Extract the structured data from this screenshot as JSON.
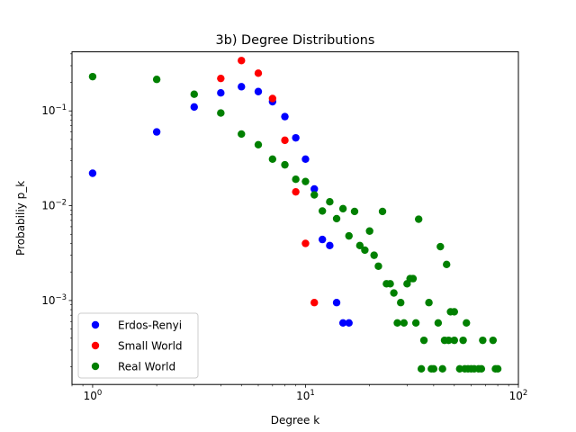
{
  "chart_data": {
    "type": "scatter",
    "title": "3b) Degree Distributions",
    "xlabel": "Degree k",
    "ylabel": "Probabiliy p_k",
    "xscale": "log",
    "yscale": "log",
    "xlim": [
      0.8,
      100
    ],
    "ylim": [
      0.00013,
      0.42
    ],
    "grid": false,
    "legend_position": "lower-left",
    "x_ticks": [
      {
        "value": 1,
        "base": "10",
        "exp": "0"
      },
      {
        "value": 10,
        "base": "10",
        "exp": "1"
      },
      {
        "value": 100,
        "base": "10",
        "exp": "2"
      }
    ],
    "y_ticks": [
      {
        "value": 0.001,
        "base": "10",
        "exp": "−3"
      },
      {
        "value": 0.01,
        "base": "10",
        "exp": "−2"
      },
      {
        "value": 0.1,
        "base": "10",
        "exp": "−1"
      }
    ],
    "series": [
      {
        "name": "Erdos-Renyi",
        "color": "#0000ff",
        "points": [
          [
            1,
            0.022
          ],
          [
            2,
            0.06
          ],
          [
            3,
            0.11
          ],
          [
            4,
            0.155
          ],
          [
            5,
            0.18
          ],
          [
            6,
            0.16
          ],
          [
            7,
            0.125
          ],
          [
            8,
            0.087
          ],
          [
            9,
            0.052
          ],
          [
            10,
            0.031
          ],
          [
            11,
            0.015
          ],
          [
            12,
            0.0044
          ],
          [
            13,
            0.0038
          ],
          [
            14,
            0.00095
          ],
          [
            15,
            0.00058
          ],
          [
            16,
            0.00058
          ]
        ]
      },
      {
        "name": "Small World",
        "color": "#ff0000",
        "points": [
          [
            4,
            0.22
          ],
          [
            5,
            0.34
          ],
          [
            6,
            0.25
          ],
          [
            7,
            0.135
          ],
          [
            8,
            0.049
          ],
          [
            9,
            0.014
          ],
          [
            10,
            0.004
          ],
          [
            11,
            0.00095
          ]
        ]
      },
      {
        "name": "Real World",
        "color": "#008000",
        "points": [
          [
            1,
            0.23
          ],
          [
            2,
            0.215
          ],
          [
            3,
            0.15
          ],
          [
            4,
            0.095
          ],
          [
            5,
            0.057
          ],
          [
            6,
            0.044
          ],
          [
            7,
            0.031
          ],
          [
            8,
            0.027
          ],
          [
            9,
            0.019
          ],
          [
            10,
            0.018
          ],
          [
            11,
            0.013
          ],
          [
            12,
            0.0088
          ],
          [
            13,
            0.011
          ],
          [
            14,
            0.0073
          ],
          [
            15,
            0.0093
          ],
          [
            16,
            0.0048
          ],
          [
            17,
            0.0087
          ],
          [
            18,
            0.0038
          ],
          [
            19,
            0.0034
          ],
          [
            20,
            0.0054
          ],
          [
            21,
            0.003
          ],
          [
            22,
            0.0023
          ],
          [
            23,
            0.0087
          ],
          [
            24,
            0.0015
          ],
          [
            25,
            0.0015
          ],
          [
            26,
            0.0012
          ],
          [
            27,
            0.00058
          ],
          [
            28,
            0.00095
          ],
          [
            29,
            0.00058
          ],
          [
            30,
            0.0015
          ],
          [
            31,
            0.0017
          ],
          [
            32,
            0.0017
          ],
          [
            33,
            0.00058
          ],
          [
            34,
            0.0072
          ],
          [
            35,
            0.00019
          ],
          [
            36,
            0.00038
          ],
          [
            38,
            0.00095
          ],
          [
            39,
            0.00019
          ],
          [
            40,
            0.00019
          ],
          [
            42,
            0.00058
          ],
          [
            43,
            0.0037
          ],
          [
            44,
            0.00019
          ],
          [
            45,
            0.00038
          ],
          [
            46,
            0.0024
          ],
          [
            47,
            0.00038
          ],
          [
            48,
            0.00076
          ],
          [
            50,
            0.00076
          ],
          [
            50,
            0.00038
          ],
          [
            53,
            0.00019
          ],
          [
            55,
            0.00038
          ],
          [
            56,
            0.00019
          ],
          [
            57,
            0.00058
          ],
          [
            58,
            0.00019
          ],
          [
            60,
            0.00019
          ],
          [
            62,
            0.00019
          ],
          [
            65,
            0.00019
          ],
          [
            67,
            0.00019
          ],
          [
            68,
            0.00038
          ],
          [
            76,
            0.00038
          ],
          [
            78,
            0.00019
          ],
          [
            80,
            0.00019
          ]
        ]
      }
    ]
  }
}
